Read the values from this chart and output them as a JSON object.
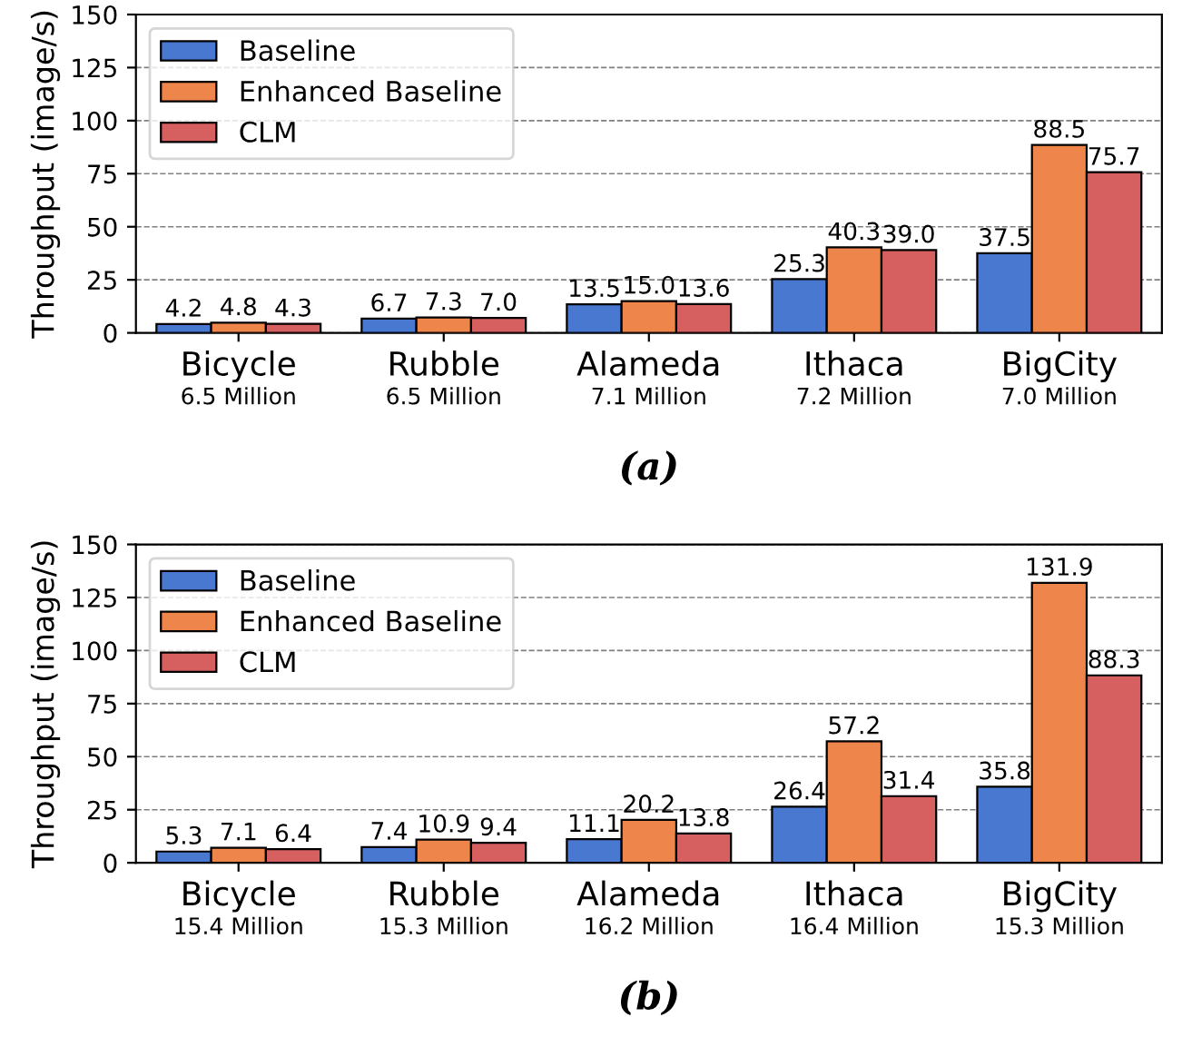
{
  "chart_data": [
    {
      "type": "bar",
      "categories": [
        "Bicycle\n6.5 Million",
        "Rubble\n6.5 Million",
        "Alameda\n7.1 Million",
        "Ithaca\n7.2 Million",
        "BigCity\n7.0 Million"
      ],
      "series": [
        {
          "name": "Baseline",
          "color": "#4878d0",
          "values": [
            4.2,
            6.7,
            13.5,
            25.3,
            37.5
          ],
          "value_labels": [
            "4.2",
            "6.7",
            "13.5",
            "25.3",
            "37.5"
          ]
        },
        {
          "name": "Enhanced Baseline",
          "color": "#ee854a",
          "values": [
            4.8,
            7.3,
            15.0,
            40.3,
            88.5
          ],
          "value_labels": [
            "4.8",
            "7.3",
            "15.0",
            "40.3",
            "88.5"
          ]
        },
        {
          "name": "CLM",
          "color": "#d65f5f",
          "values": [
            4.3,
            7.0,
            13.6,
            39.0,
            75.7
          ],
          "value_labels": [
            "4.3",
            "7.0",
            "13.6",
            "39.0",
            "75.7"
          ]
        }
      ],
      "ylabel": "Throughput (image/s)",
      "ylim": [
        0,
        150
      ],
      "yticks": [
        0,
        25,
        50,
        75,
        100,
        125,
        150
      ],
      "grid": "y",
      "legend": "top left",
      "annotations": [
        "(a)"
      ]
    },
    {
      "type": "bar",
      "categories": [
        "Bicycle\n15.4 Million",
        "Rubble\n15.3 Million",
        "Alameda\n16.2 Million",
        "Ithaca\n16.4 Million",
        "BigCity\n15.3 Million"
      ],
      "series": [
        {
          "name": "Baseline",
          "color": "#4878d0",
          "values": [
            5.3,
            7.4,
            11.1,
            26.4,
            35.8
          ]
        },
        {
          "name": "Enhanced Baseline",
          "color": "#ee854a",
          "values": [
            7.1,
            10.9,
            20.2,
            57.2,
            131.9
          ]
        },
        {
          "name": "CLM",
          "color": "#d65f5f",
          "values": [
            6.4,
            9.4,
            13.8,
            31.4,
            88.3
          ]
        }
      ],
      "ylabel": "Throughput (image/s)",
      "ylim": [
        0,
        150
      ],
      "yticks": [
        0,
        25,
        50,
        75,
        100,
        125,
        150
      ],
      "grid": "y",
      "legend": "top left",
      "data_labels": true,
      "annotations": [
        "(b)"
      ]
    }
  ]
}
